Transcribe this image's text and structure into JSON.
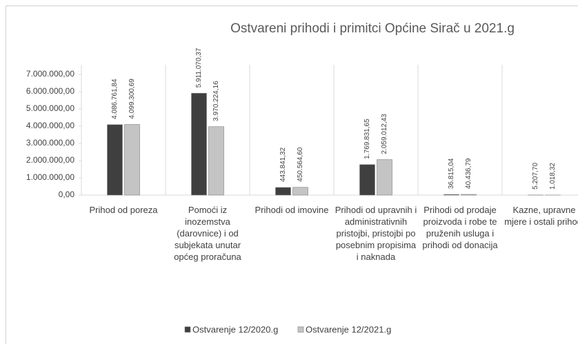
{
  "chart_data": {
    "type": "bar",
    "title": "Ostvareni prihodi i primitci Općine Sirač u 2021.g",
    "categories": [
      "Prihod od poreza",
      "Pomoći iz inozemstva (darovnice) i od subjekata unutar općeg proračuna",
      "Prihodi od imovine",
      "Prihodi od upravnih i administrativnih pristojbi, pristojbi po posebnim propisima i naknada",
      "Prihodi od prodaje proizvoda i robe te pruženih usluga i prihodi od donacija",
      "Kazne, upravne mjere i ostali prihodi"
    ],
    "series": [
      {
        "name": "Ostvarenje 12/2020.g",
        "color": "#3f3f3f",
        "values": [
          4086761.84,
          5911070.37,
          443841.32,
          1769831.65,
          36815.04,
          5207.7
        ],
        "value_labels": [
          "4.086.761,84",
          "5.911.070,37",
          "443.841,32",
          "1.769.831,65",
          "36.815,04",
          "5.207,70"
        ]
      },
      {
        "name": "Ostvarenje 12/2021.g",
        "color": "#c4c4c4",
        "values": [
          4099300.69,
          3970224.16,
          450564.6,
          2059012.43,
          40436.79,
          1018.32
        ],
        "value_labels": [
          "4.099.300,69",
          "3.970.224,16",
          "450.564,60",
          "2.059.012,43",
          "40.436,79",
          "1.018,32"
        ]
      }
    ],
    "ylim": [
      0,
      7000000
    ],
    "yticks": [
      {
        "value": 0,
        "label": "0,00"
      },
      {
        "value": 1000000,
        "label": "1.000.000,00"
      },
      {
        "value": 2000000,
        "label": "2.000.000,00"
      },
      {
        "value": 3000000,
        "label": "3.000.000,00"
      },
      {
        "value": 4000000,
        "label": "4.000.000,00"
      },
      {
        "value": 5000000,
        "label": "5.000.000,00"
      },
      {
        "value": 6000000,
        "label": "6.000.000,00"
      },
      {
        "value": 7000000,
        "label": "7.000.000,00"
      }
    ],
    "legend": "bottom"
  }
}
